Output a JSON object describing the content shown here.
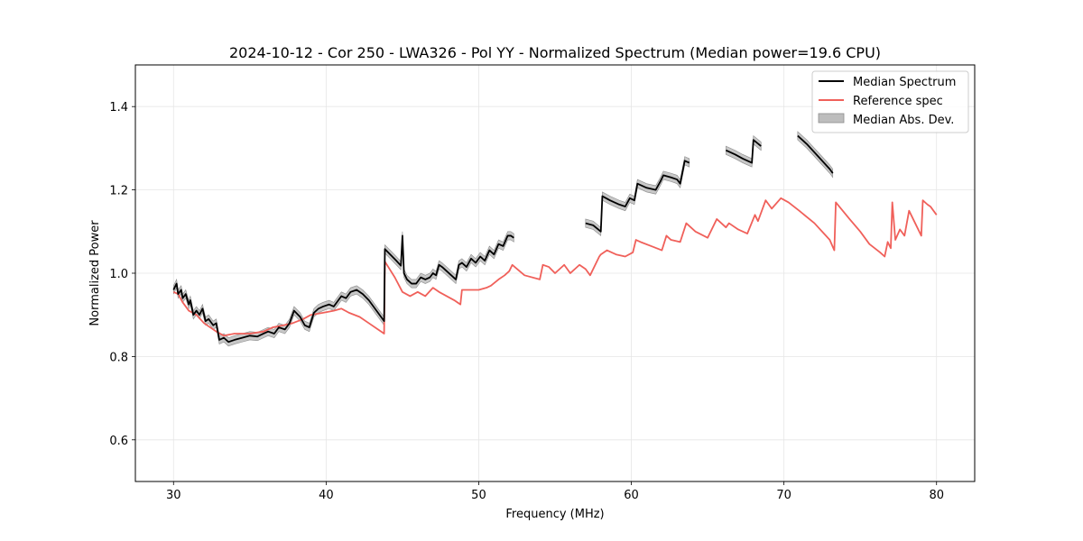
{
  "chart_data": {
    "type": "line",
    "title": "2024-10-12 - Cor 250 - LWA326 - Pol YY - Normalized Spectrum (Median power=19.6 CPU)",
    "xlabel": "Frequency (MHz)",
    "ylabel": "Normalized Power",
    "xlim": [
      27.5,
      82.5
    ],
    "ylim": [
      0.5,
      1.5
    ],
    "xticks": [
      30,
      40,
      50,
      60,
      70,
      80
    ],
    "yticks": [
      0.6,
      0.8,
      1.0,
      1.2,
      1.4
    ],
    "xtick_labels": [
      "30",
      "40",
      "50",
      "60",
      "70",
      "80"
    ],
    "ytick_labels": [
      "0.6",
      "0.8",
      "1.0",
      "1.2",
      "1.4"
    ],
    "grid": true,
    "legend_position": "top-right",
    "legend": [
      "Median Spectrum",
      "Reference spec",
      "Median Abs. Dev."
    ],
    "colors": {
      "median": "#000000",
      "reference": "#f0605a",
      "band": "#bdbdbd",
      "band_edge": "#8c8c8c"
    },
    "series": [
      {
        "name": "Median Spectrum",
        "segments": [
          {
            "x": [
              30.0,
              30.2,
              30.3,
              30.5,
              30.6,
              30.8,
              31.0,
              31.1,
              31.3,
              31.5,
              31.7,
              31.9,
              32.1,
              32.3,
              32.6,
              32.8,
              33.0,
              33.3,
              33.6,
              34.0,
              34.5,
              35.0,
              35.5,
              35.9,
              36.2,
              36.6,
              36.9,
              37.3,
              37.6,
              37.9,
              38.3,
              38.6,
              38.9,
              39.2,
              39.5,
              39.8,
              40.2,
              40.5,
              40.8,
              41.0,
              41.3,
              41.6,
              42.0,
              42.4,
              42.8,
              43.2,
              43.6,
              43.8,
              43.85,
              44.2,
              44.6,
              44.9,
              45.0,
              45.1,
              45.3,
              45.6,
              45.9,
              46.2,
              46.5,
              46.8,
              47.0,
              47.2,
              47.4,
              47.6,
              47.9,
              48.2,
              48.5,
              48.7,
              48.9,
              49.2,
              49.5,
              49.8,
              50.1,
              50.4,
              50.7,
              51.0,
              51.3,
              51.6,
              51.9,
              52.1,
              52.3
            ],
            "y": [
              0.96,
              0.975,
              0.95,
              0.96,
              0.94,
              0.95,
              0.925,
              0.935,
              0.9,
              0.91,
              0.9,
              0.915,
              0.885,
              0.89,
              0.875,
              0.88,
              0.84,
              0.845,
              0.835,
              0.84,
              0.845,
              0.85,
              0.848,
              0.855,
              0.86,
              0.855,
              0.87,
              0.865,
              0.88,
              0.91,
              0.895,
              0.875,
              0.87,
              0.905,
              0.915,
              0.92,
              0.925,
              0.92,
              0.935,
              0.945,
              0.94,
              0.955,
              0.96,
              0.95,
              0.935,
              0.915,
              0.895,
              0.885,
              1.058,
              1.045,
              1.03,
              1.018,
              1.09,
              1.0,
              0.985,
              0.975,
              0.975,
              0.99,
              0.985,
              0.99,
              1.0,
              0.995,
              1.02,
              1.015,
              1.005,
              0.995,
              0.985,
              1.02,
              1.025,
              1.015,
              1.035,
              1.025,
              1.04,
              1.03,
              1.055,
              1.045,
              1.07,
              1.065,
              1.09,
              1.09,
              1.085
            ]
          },
          {
            "x": [
              57.0,
              57.5,
              58.0,
              58.1,
              58.6,
              59.2,
              59.6,
              59.9,
              60.2,
              60.4,
              61.0,
              61.6,
              61.9,
              62.1,
              62.6,
              63.0,
              63.2,
              63.5,
              63.8
            ],
            "y": [
              1.12,
              1.115,
              1.1,
              1.185,
              1.175,
              1.165,
              1.16,
              1.18,
              1.175,
              1.215,
              1.205,
              1.2,
              1.22,
              1.235,
              1.23,
              1.225,
              1.215,
              1.27,
              1.265
            ]
          },
          {
            "x": [
              66.2,
              66.8,
              67.3,
              67.9,
              68.0,
              68.5
            ],
            "y": [
              1.295,
              1.285,
              1.275,
              1.265,
              1.32,
              1.305
            ]
          },
          {
            "x": [
              70.9,
              71.5,
              72.0,
              72.5,
              73.0,
              73.2
            ],
            "y": [
              1.33,
              1.31,
              1.29,
              1.27,
              1.25,
              1.24
            ]
          }
        ],
        "mad": 0.01
      },
      {
        "name": "Reference spec",
        "x": [
          30.0,
          30.3,
          30.6,
          31.0,
          31.5,
          32.0,
          32.4,
          32.8,
          33.3,
          34.0,
          35.0,
          35.9,
          36.5,
          37.2,
          37.8,
          38.5,
          39.0,
          39.8,
          40.5,
          41.0,
          41.5,
          42.2,
          42.8,
          43.4,
          43.8,
          43.85,
          44.5,
          45.0,
          45.5,
          46.0,
          46.5,
          47.0,
          47.4,
          47.9,
          48.4,
          48.8,
          48.9,
          49.5,
          50.0,
          50.5,
          50.8,
          51.3,
          51.7,
          52.0,
          52.2,
          53.0,
          54.0,
          54.2,
          54.6,
          55.0,
          55.6,
          56.0,
          56.6,
          57.0,
          57.3,
          57.9,
          58.0,
          58.4,
          59.0,
          59.6,
          60.1,
          60.3,
          60.6,
          61.3,
          62.0,
          62.3,
          62.6,
          63.2,
          63.6,
          64.2,
          65.0,
          65.6,
          66.2,
          66.4,
          67.0,
          67.6,
          68.1,
          68.3,
          68.8,
          69.2,
          69.8,
          70.3,
          71.0,
          72.0,
          73.0,
          73.3,
          73.4,
          74.3,
          75.0,
          75.6,
          76.3,
          76.6,
          76.8,
          77.0,
          77.1,
          77.3,
          77.6,
          77.9,
          78.2,
          78.6,
          79.0,
          79.1,
          79.4,
          79.6,
          80.0
        ],
        "y": [
          0.955,
          0.95,
          0.93,
          0.91,
          0.9,
          0.88,
          0.87,
          0.86,
          0.85,
          0.855,
          0.855,
          0.86,
          0.87,
          0.875,
          0.88,
          0.89,
          0.9,
          0.905,
          0.91,
          0.915,
          0.905,
          0.895,
          0.88,
          0.865,
          0.855,
          1.028,
          0.99,
          0.955,
          0.945,
          0.955,
          0.945,
          0.965,
          0.955,
          0.945,
          0.935,
          0.925,
          0.96,
          0.96,
          0.96,
          0.965,
          0.97,
          0.985,
          0.995,
          1.005,
          1.02,
          0.995,
          0.985,
          1.02,
          1.015,
          1.0,
          1.02,
          1.0,
          1.02,
          1.01,
          0.995,
          1.04,
          1.045,
          1.055,
          1.045,
          1.04,
          1.05,
          1.08,
          1.075,
          1.065,
          1.055,
          1.09,
          1.08,
          1.075,
          1.12,
          1.1,
          1.085,
          1.13,
          1.11,
          1.12,
          1.105,
          1.095,
          1.14,
          1.125,
          1.175,
          1.155,
          1.18,
          1.17,
          1.15,
          1.12,
          1.08,
          1.055,
          1.17,
          1.13,
          1.1,
          1.07,
          1.05,
          1.04,
          1.075,
          1.06,
          1.17,
          1.08,
          1.105,
          1.09,
          1.15,
          1.12,
          1.09,
          1.175,
          1.165,
          1.16,
          1.14
        ]
      },
      {
        "name": "Median Abs. Dev.",
        "type": "band",
        "of": "Median Spectrum"
      }
    ]
  }
}
